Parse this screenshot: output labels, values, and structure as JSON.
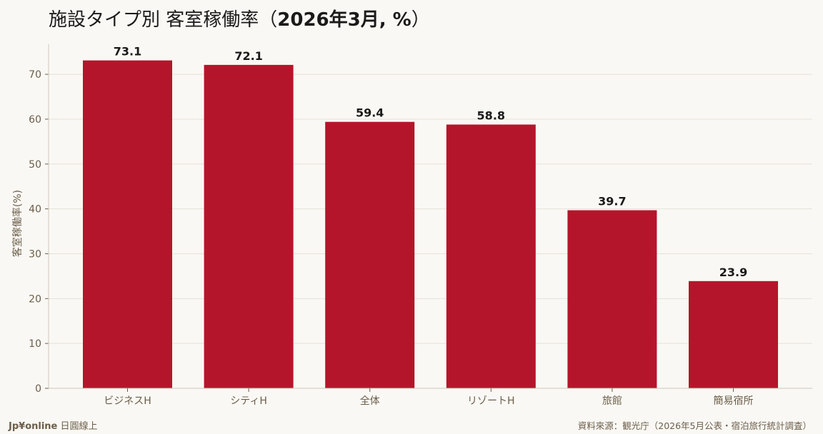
{
  "chart": {
    "title_prefix": "施設タイプ別 客室稼働率（",
    "title_bold": "2026年3月, %",
    "title_suffix": "）"
  },
  "footer": {
    "brand_name": "Jp¥online",
    "brand_sub": "日圓線上",
    "source": "資料來源：観光庁（2026年5月公表・宿泊旅行統計調査）"
  },
  "colors": {
    "bar": "#b5152b",
    "grid": "#e6e1d8",
    "axis_text": "#6b5e4a",
    "label_text": "#1a1a1a"
  },
  "chart_data": {
    "type": "bar",
    "title": "施設タイプ別 客室稼働率（2026年3月, %）",
    "categories": [
      "ビジネスH",
      "シティH",
      "全体",
      "リゾートH",
      "旅館",
      "簡易宿所"
    ],
    "values": [
      73.1,
      72.1,
      59.4,
      58.8,
      39.7,
      23.9
    ],
    "value_labels": [
      "73.1",
      "72.1",
      "59.4",
      "58.8",
      "39.7",
      "23.9"
    ],
    "xlabel": "",
    "ylabel": "客室稼働率(%)",
    "ylim": [
      0,
      76.7
    ],
    "yticks": [
      0,
      10,
      20,
      30,
      40,
      50,
      60,
      70
    ],
    "grid": true,
    "legend": "none"
  }
}
